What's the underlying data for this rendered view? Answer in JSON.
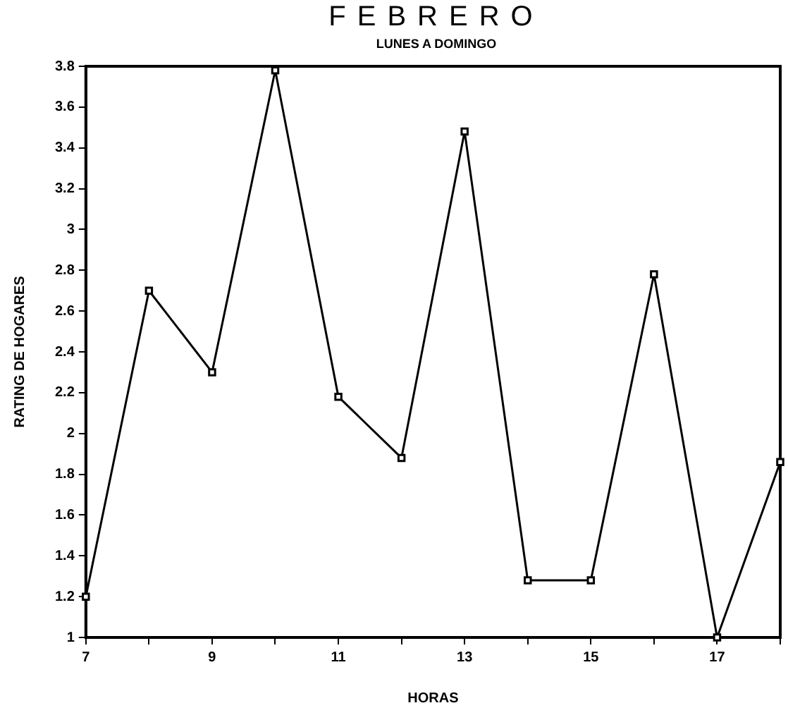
{
  "chart_data": {
    "type": "line",
    "title": "FEBRERO",
    "subtitle": "LUNES A DOMINGO",
    "xlabel": "HORAS",
    "ylabel": "RATING DE HOGARES",
    "x": [
      7,
      8,
      9,
      10,
      11,
      12,
      13,
      14,
      15,
      16,
      17,
      18
    ],
    "series": [
      {
        "color": "#000000",
        "values": [
          1.2,
          2.7,
          2.3,
          3.78,
          2.18,
          1.88,
          3.48,
          1.28,
          1.28,
          2.78,
          1.0,
          1.86
        ]
      }
    ],
    "xlim": [
      7,
      18
    ],
    "xticks": [
      7,
      {
        "value": 8,
        "label": null
      },
      9,
      {
        "value": 10,
        "label": null
      },
      11,
      {
        "value": 12,
        "label": null
      },
      13,
      {
        "value": 14,
        "label": null
      },
      15,
      {
        "value": 16,
        "label": null
      },
      17,
      {
        "value": 18,
        "label": null
      }
    ],
    "ylim": [
      1,
      3.8
    ],
    "yticks": [
      1,
      1.2,
      1.4,
      1.6,
      1.8,
      2,
      2.2,
      2.4,
      2.6,
      2.8,
      3,
      3.2,
      3.4,
      3.6,
      3.8
    ],
    "marker": "square",
    "line_style": "solid",
    "grid": false,
    "legend": false
  }
}
